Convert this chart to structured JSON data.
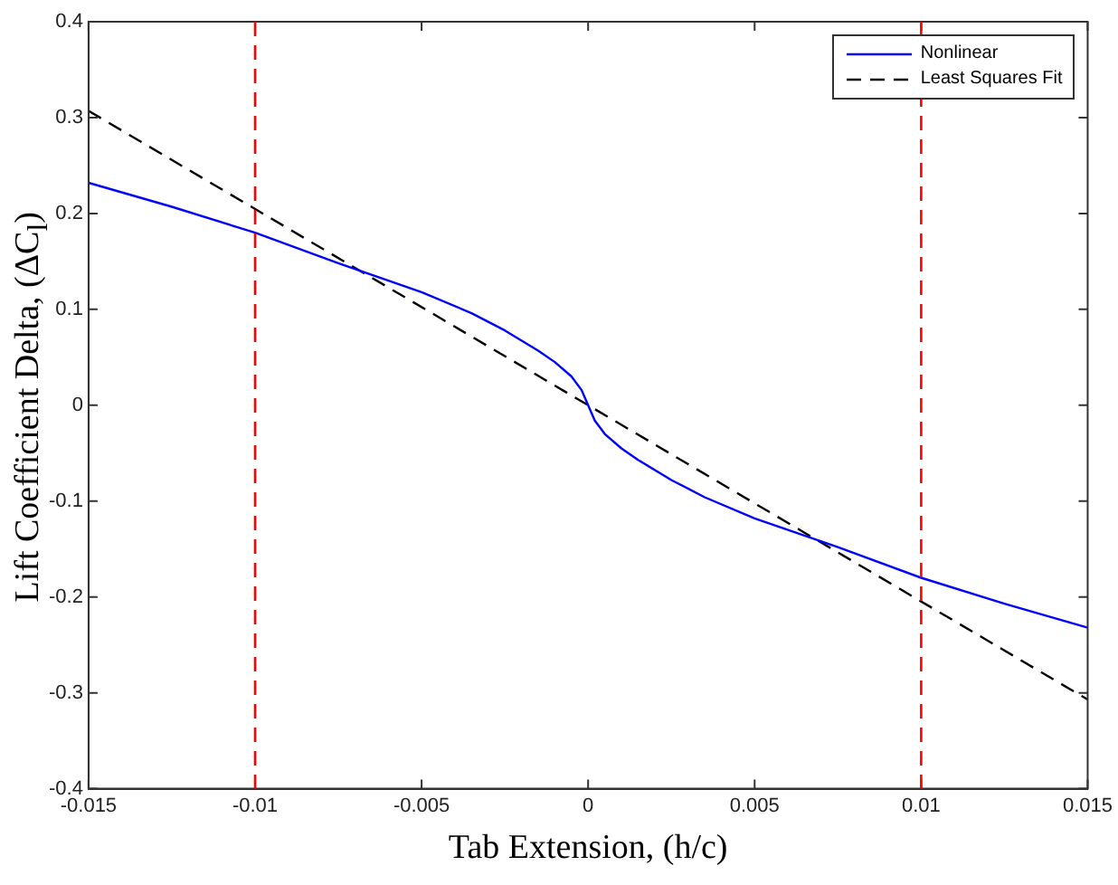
{
  "chart_data": {
    "type": "line",
    "xlabel": "Tab Extension, (h/c)",
    "ylabel": "Lift Coefficient Delta, (ΔC$_{l}$)",
    "series": [
      {
        "name": "Nonlinear",
        "color": "#0000ff",
        "line_style": "solid",
        "x": [
          -0.015,
          -0.0125,
          -0.01,
          -0.0075,
          -0.005,
          -0.0035,
          -0.0025,
          -0.0015,
          -0.001,
          -0.0005,
          -0.0002,
          0,
          0.0002,
          0.0005,
          0.001,
          0.0015,
          0.0025,
          0.0035,
          0.005,
          0.0075,
          0.01,
          0.0125,
          0.015
        ],
        "values": [
          0.232,
          0.207,
          0.18,
          0.148,
          0.118,
          0.096,
          0.078,
          0.057,
          0.045,
          0.03,
          0.016,
          0,
          -0.016,
          -0.03,
          -0.045,
          -0.057,
          -0.078,
          -0.096,
          -0.118,
          -0.148,
          -0.18,
          -0.207,
          -0.232
        ]
      },
      {
        "name": "Least Squares Fit",
        "color": "#000000",
        "line_style": "dashed",
        "x": [
          -0.015,
          0.015
        ],
        "values": [
          0.307,
          -0.307
        ]
      }
    ],
    "ref_lines": [
      {
        "axis": "x",
        "value": -0.01,
        "color": "#ff0000",
        "line_style": "dashed"
      },
      {
        "axis": "x",
        "value": 0.01,
        "color": "#ff0000",
        "line_style": "dashed"
      }
    ],
    "xlim": [
      -0.015,
      0.015
    ],
    "xticks": [
      -0.015,
      -0.01,
      -0.005,
      0,
      0.005,
      0.01,
      0.015
    ],
    "ylim": [
      -0.4,
      0.4
    ],
    "yticks": [
      -0.4,
      -0.3,
      -0.2,
      -0.1,
      0,
      0.1,
      0.2,
      0.3,
      0.4
    ],
    "grid": false,
    "legend": "top right",
    "marker": "none"
  }
}
